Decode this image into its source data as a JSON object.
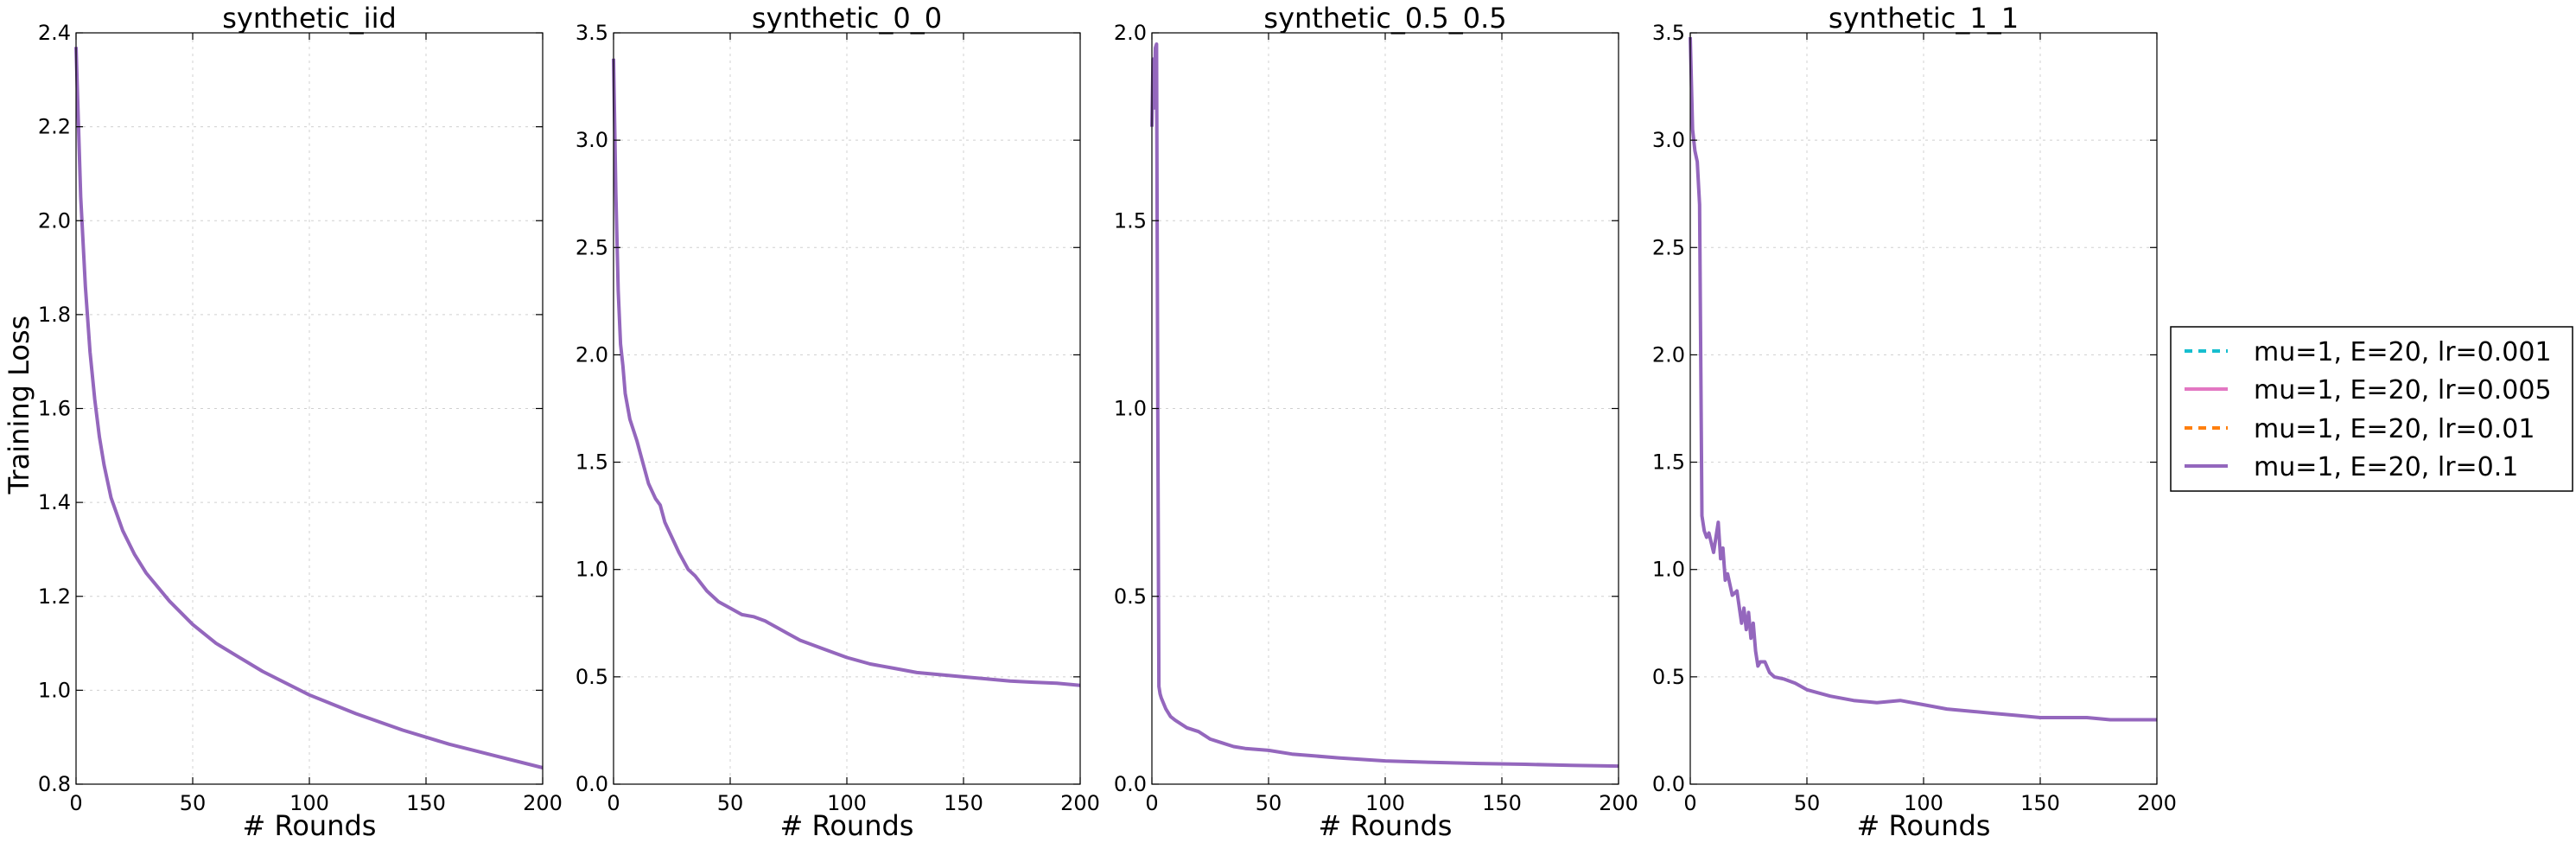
{
  "figure": {
    "ylabel": "Training Loss",
    "legend": {
      "placement": "right",
      "entries": [
        {
          "label": "mu=1, E=20, lr=0.001",
          "color": "#17becf",
          "style": "dashed"
        },
        {
          "label": "mu=1, E=20, lr=0.005",
          "color": "#e377c2",
          "style": "solid"
        },
        {
          "label": "mu=1, E=20, lr=0.01",
          "color": "#ff7f0e",
          "style": "dashed"
        },
        {
          "label": "mu=1, E=20, lr=0.1",
          "color": "#9467bd",
          "style": "solid"
        }
      ]
    }
  },
  "chart_data": [
    {
      "type": "line",
      "title": "synthetic_iid",
      "xlabel": "# Rounds",
      "ylabel": "Training Loss",
      "xlim": [
        0,
        200
      ],
      "ylim": [
        0.8,
        2.4
      ],
      "xticks": [
        0,
        50,
        100,
        150,
        200
      ],
      "yticks": [
        "0.8",
        "1.0",
        "1.2",
        "1.4",
        "1.6",
        "1.8",
        "2.0",
        "2.2",
        "2.4"
      ],
      "grid": true,
      "series": [
        {
          "name": "mu=1, E=20, lr=0.1",
          "color": "#9467bd",
          "x": [
            0,
            2,
            4,
            6,
            8,
            10,
            12,
            15,
            20,
            25,
            30,
            40,
            50,
            60,
            70,
            80,
            100,
            120,
            140,
            160,
            180,
            200
          ],
          "y": [
            2.37,
            2.05,
            1.86,
            1.72,
            1.62,
            1.54,
            1.48,
            1.41,
            1.34,
            1.29,
            1.25,
            1.19,
            1.14,
            1.1,
            1.07,
            1.04,
            0.99,
            0.95,
            0.915,
            0.885,
            0.86,
            0.835
          ]
        }
      ]
    },
    {
      "type": "line",
      "title": "synthetic_0_0",
      "xlabel": "# Rounds",
      "xlim": [
        0,
        200
      ],
      "ylim": [
        0.0,
        3.5
      ],
      "xticks": [
        0,
        50,
        100,
        150,
        200
      ],
      "yticks": [
        "0.0",
        "0.5",
        "1.0",
        "1.5",
        "2.0",
        "2.5",
        "3.0",
        "3.5"
      ],
      "grid": true,
      "series": [
        {
          "name": "mu=1, E=20, lr=0.1",
          "color": "#9467bd",
          "x": [
            0,
            1,
            2,
            3,
            4,
            5,
            7,
            10,
            12,
            15,
            18,
            20,
            22,
            25,
            28,
            30,
            32,
            35,
            40,
            45,
            50,
            55,
            60,
            65,
            70,
            75,
            80,
            85,
            90,
            100,
            110,
            120,
            130,
            140,
            150,
            160,
            170,
            180,
            190,
            200
          ],
          "y": [
            3.38,
            2.75,
            2.3,
            2.05,
            1.95,
            1.82,
            1.7,
            1.6,
            1.52,
            1.4,
            1.33,
            1.3,
            1.22,
            1.15,
            1.08,
            1.04,
            1.0,
            0.97,
            0.9,
            0.85,
            0.82,
            0.79,
            0.78,
            0.76,
            0.73,
            0.7,
            0.67,
            0.65,
            0.63,
            0.59,
            0.56,
            0.54,
            0.52,
            0.51,
            0.5,
            0.49,
            0.48,
            0.475,
            0.47,
            0.46
          ]
        }
      ]
    },
    {
      "type": "line",
      "title": "synthetic_0.5_0.5",
      "xlabel": "# Rounds",
      "xlim": [
        0,
        200
      ],
      "ylim": [
        0.0,
        2.0
      ],
      "xticks": [
        0,
        50,
        100,
        150,
        200
      ],
      "yticks": [
        "0.0",
        "0.5",
        "1.0",
        "1.5",
        "2.0"
      ],
      "grid": true,
      "series": [
        {
          "name": "mu=1, E=20, lr=0.1",
          "color": "#9467bd",
          "x": [
            0,
            0.5,
            1,
            1.5,
            2,
            2.5,
            3,
            3.5,
            4,
            6,
            8,
            10,
            15,
            20,
            25,
            30,
            35,
            40,
            50,
            60,
            70,
            80,
            100,
            120,
            140,
            160,
            180,
            200
          ],
          "y": [
            1.75,
            1.93,
            1.8,
            1.96,
            1.97,
            1.0,
            0.26,
            0.24,
            0.23,
            0.2,
            0.18,
            0.17,
            0.15,
            0.14,
            0.12,
            0.11,
            0.1,
            0.095,
            0.09,
            0.08,
            0.075,
            0.07,
            0.062,
            0.058,
            0.055,
            0.053,
            0.05,
            0.048
          ]
        }
      ]
    },
    {
      "type": "line",
      "title": "synthetic_1_1",
      "xlabel": "# Rounds",
      "xlim": [
        0,
        200
      ],
      "ylim": [
        0.0,
        3.5
      ],
      "xticks": [
        0,
        50,
        100,
        150,
        200
      ],
      "yticks": [
        "0.0",
        "0.5",
        "1.0",
        "1.5",
        "2.0",
        "2.5",
        "3.0",
        "3.5"
      ],
      "grid": true,
      "series": [
        {
          "name": "mu=1, E=20, lr=0.1",
          "color": "#9467bd",
          "x": [
            0,
            1,
            2,
            3,
            4,
            5,
            6,
            7,
            8,
            10,
            12,
            13,
            14,
            15,
            16,
            18,
            20,
            22,
            23,
            24,
            25,
            26,
            27,
            28,
            29,
            30,
            32,
            34,
            36,
            40,
            45,
            50,
            60,
            70,
            80,
            90,
            100,
            110,
            120,
            130,
            140,
            150,
            160,
            170,
            180,
            190,
            200
          ],
          "y": [
            3.48,
            3.05,
            2.95,
            2.9,
            2.7,
            1.25,
            1.18,
            1.15,
            1.17,
            1.08,
            1.22,
            1.05,
            1.1,
            0.95,
            0.98,
            0.88,
            0.9,
            0.75,
            0.82,
            0.72,
            0.8,
            0.68,
            0.75,
            0.62,
            0.55,
            0.57,
            0.57,
            0.52,
            0.5,
            0.49,
            0.47,
            0.44,
            0.41,
            0.39,
            0.38,
            0.39,
            0.37,
            0.35,
            0.34,
            0.33,
            0.32,
            0.31,
            0.31,
            0.31,
            0.3,
            0.3,
            0.3
          ]
        }
      ]
    }
  ]
}
